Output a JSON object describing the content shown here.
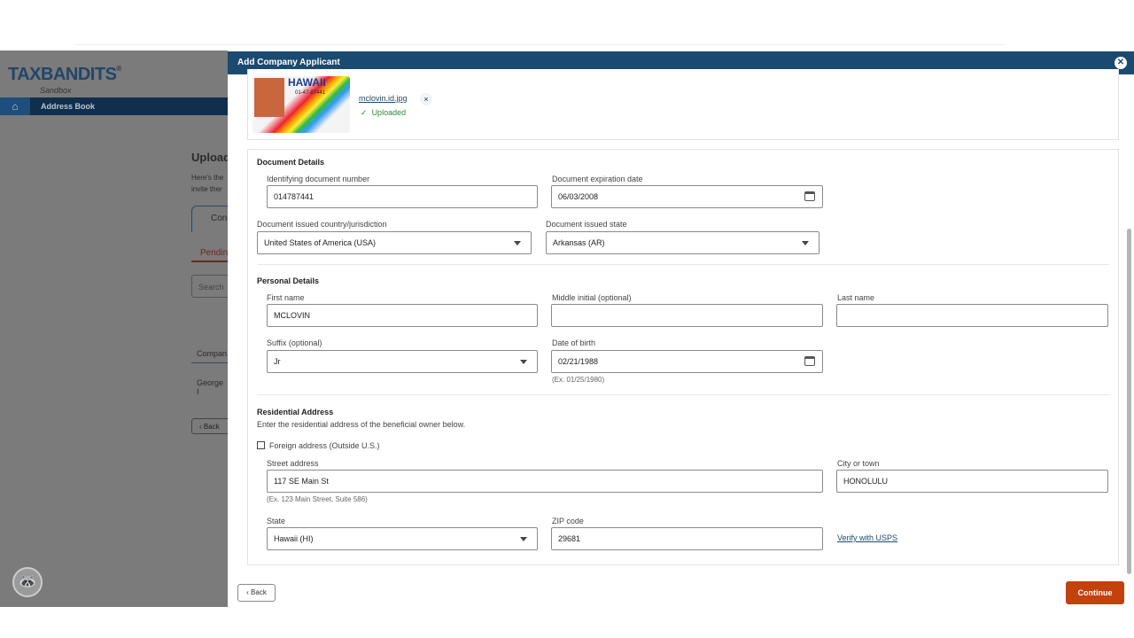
{
  "background": {
    "logo": "TAXBANDITS",
    "logo_sub": "Sandbox",
    "nav": "Address Book",
    "heading": "Upload",
    "desc1": "Here's the",
    "desc2": "invite ther",
    "tab": "Con",
    "subtab": "Pending",
    "search": "Search",
    "table_header": "Compan",
    "table_row": "George I",
    "back": "Back"
  },
  "modal": {
    "title": "Add Company Applicant",
    "upload": {
      "filename": "mclovin.id.jpg",
      "status": "Uploaded",
      "card_text": "HAWAII",
      "card_number": "01-47-87441"
    },
    "document": {
      "heading": "Document Details",
      "id_label": "Identifying document number",
      "id_value": "014787441",
      "exp_label": "Document expiration date",
      "exp_value": "06/03/2008",
      "country_label": "Document issued country/jurisdiction",
      "country_value": "United States of America (USA)",
      "state_label": "Document issued state",
      "state_value": "Arkansas (AR)"
    },
    "personal": {
      "heading": "Personal Details",
      "first_label": "First name",
      "first_value": "MCLOVIN",
      "middle_label": "Middle initial (optional)",
      "middle_value": "",
      "last_label": "Last name",
      "last_value": "",
      "suffix_label": "Suffix (optional)",
      "suffix_value": "Jr",
      "dob_label": "Date of birth",
      "dob_value": "02/21/1988",
      "dob_hint": "(Ex. 01/25/1980)"
    },
    "address": {
      "heading": "Residential Address",
      "desc": "Enter the residential address of the beneficial owner below.",
      "foreign_label": "Foreign address (Outside U.S.)",
      "foreign_checked": false,
      "street_label": "Street address",
      "street_value": "117 SE Main St",
      "street_hint": "(Ex. 123 Main Street, Suite 586)",
      "city_label": "City or town",
      "city_value": "HONOLULU",
      "state_label": "State",
      "state_value": "Hawaii (HI)",
      "zip_label": "ZIP code",
      "zip_value": "29681",
      "verify": "Verify with USPS"
    },
    "footer": {
      "back": "Back",
      "continue": "Continue"
    },
    "colors": {
      "header": "#1b4a70",
      "continue": "#c2410c",
      "success": "#2e8b3a"
    }
  }
}
